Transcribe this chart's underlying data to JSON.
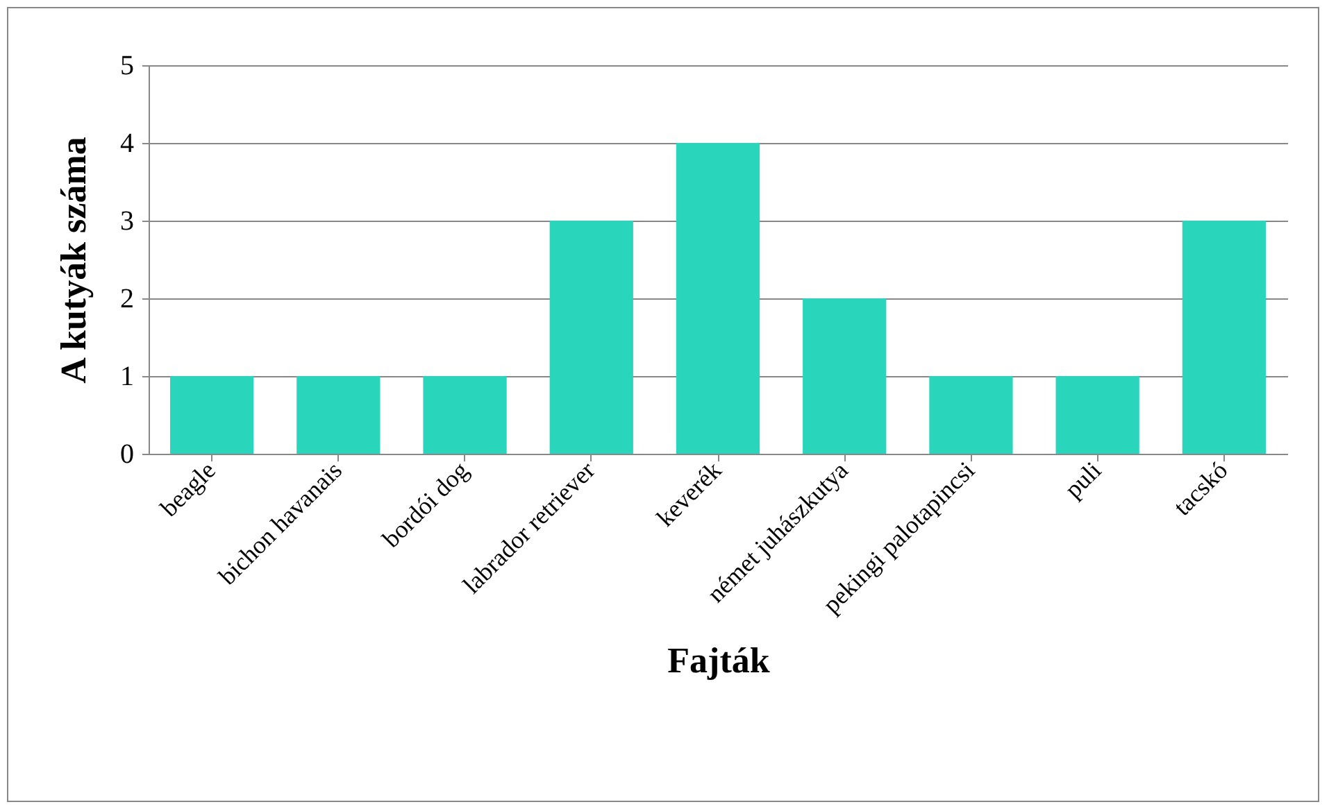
{
  "chart_data": {
    "type": "bar",
    "xlabel": "Fajták",
    "ylabel": "A kutyák száma",
    "categories": [
      "beagle",
      "bichon havanais",
      "bordói dog",
      "labrador retriever",
      "keverék",
      "német juhászkutya",
      "pekingi palotapincsi",
      "puli",
      "tacskó"
    ],
    "values": [
      1,
      1,
      1,
      3,
      4,
      2,
      1,
      1,
      3
    ],
    "color": "#2ad6bb",
    "ylim": [
      0,
      5
    ],
    "yticks": [
      0,
      1,
      2,
      3,
      4,
      5
    ],
    "grid": "y"
  }
}
